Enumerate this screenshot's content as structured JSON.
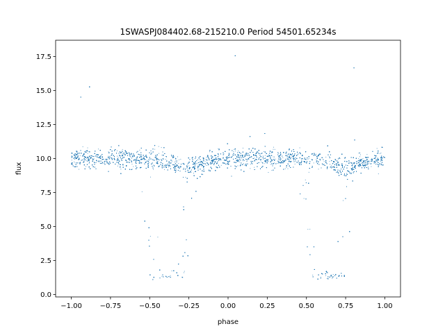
{
  "chart_data": {
    "type": "scatter",
    "title": "1SWASPJ084402.68-215210.0 Period 54501.65234s",
    "xlabel": "phase",
    "ylabel": "flux",
    "xlim": [
      -1.1,
      1.1
    ],
    "ylim": [
      -0.18,
      18.7
    ],
    "xticks": [
      -1.0,
      -0.75,
      -0.5,
      -0.25,
      0.0,
      0.25,
      0.5,
      0.75,
      1.0
    ],
    "xtick_labels": [
      "−1.00",
      "−0.75",
      "−0.50",
      "−0.25",
      "0.00",
      "0.25",
      "0.50",
      "0.75",
      "1.00"
    ],
    "yticks": [
      0.0,
      2.5,
      5.0,
      7.5,
      10.0,
      12.5,
      15.0,
      17.5
    ],
    "ytick_labels": [
      "0.0",
      "2.5",
      "5.0",
      "7.5",
      "10.0",
      "12.5",
      "15.0",
      "17.5"
    ],
    "grid": false,
    "legend": "none",
    "marker_color": "#1f77b4",
    "light_curve": {
      "baseline_flux": 10.0,
      "baseline_scatter": 0.35,
      "secondary_dip_phases": [
        -0.25,
        0.75
      ],
      "secondary_dip_depth": 0.6,
      "eclipse_phases": [
        -0.375,
        0.625
      ],
      "eclipse_bottom_halfwidth": 0.085,
      "eclipse_ingress_width": 0.075,
      "eclipse_min_flux": 1.4,
      "points_per_unit_phase": 7000
    }
  }
}
